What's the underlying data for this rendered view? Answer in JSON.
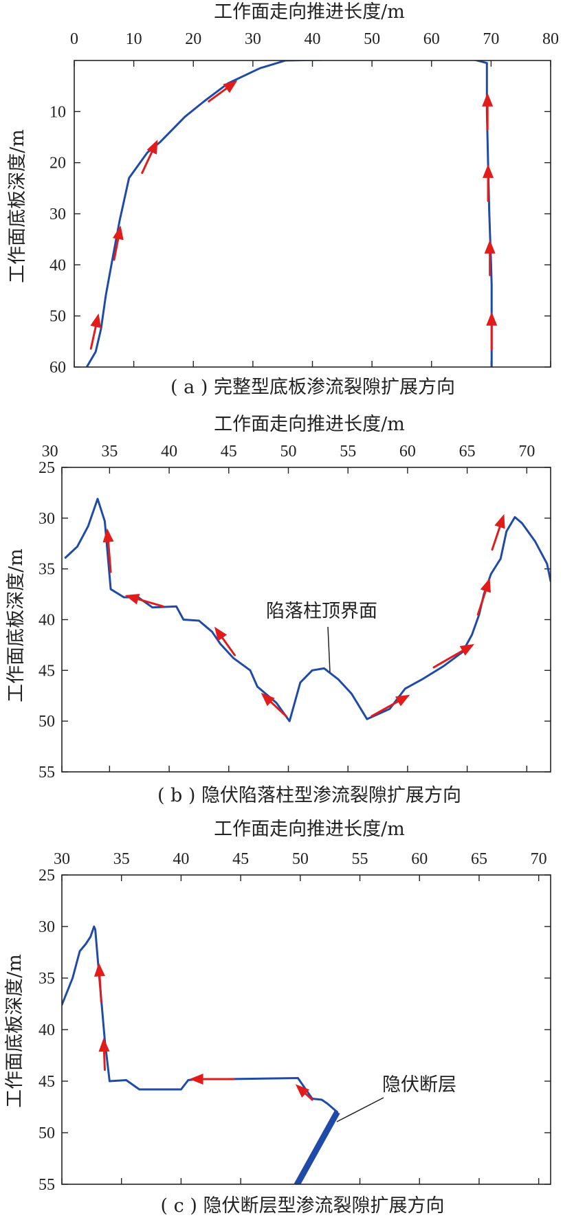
{
  "chart_data": [
    {
      "type": "line",
      "id": "a",
      "xlabel": "工作面走向推进长度/m",
      "ylabel": "工作面底板深度/m",
      "caption": "( a ) 完整型底板渗流裂隙扩展方向",
      "xlim": [
        0,
        80
      ],
      "ylim": [
        60,
        0
      ],
      "x_axis_position": "top",
      "y_inverted": true,
      "xticks": [
        0,
        10,
        20,
        30,
        40,
        50,
        60,
        70,
        80
      ],
      "yticks": [
        10,
        20,
        30,
        40,
        50,
        60
      ],
      "xtick_labels": [
        "0",
        "10",
        "20",
        "30",
        "40",
        "50",
        "60",
        "70",
        "80"
      ],
      "ytick_labels": [
        "10",
        "20",
        "30",
        "40",
        "50",
        "60"
      ],
      "line_color": "#1f4aa8",
      "arrow_color": "#e21b1b",
      "series": [
        {
          "x": [
            2.1,
            3.6,
            4.5,
            5.3,
            6.4,
            7.6,
            9.2,
            12.3,
            14.4,
            18.6,
            21.8,
            25.8,
            31.2,
            35.5,
            45,
            57,
            67,
            69.3,
            69.3,
            69.5,
            69.7,
            70.0,
            70.1,
            70.1,
            70.1
          ],
          "y": [
            60,
            57,
            52.5,
            46,
            39,
            31.5,
            23,
            18,
            16,
            11,
            8,
            4.5,
            1.5,
            0,
            -0.2,
            -0.2,
            -0.2,
            0.5,
            10,
            20,
            30,
            40,
            44,
            50,
            60
          ]
        }
      ],
      "arrows": [
        {
          "x1": 2.8,
          "y1": 56.4,
          "x2": 4.1,
          "y2": 49.5
        },
        {
          "x1": 6.7,
          "y1": 39,
          "x2": 7.8,
          "y2": 32.3
        },
        {
          "x1": 11.4,
          "y1": 22,
          "x2": 14.0,
          "y2": 15.5
        },
        {
          "x1": 22.6,
          "y1": 8,
          "x2": 27.4,
          "y2": 3.9
        },
        {
          "x1": 69.4,
          "y1": 13.5,
          "x2": 69.4,
          "y2": 6.3
        },
        {
          "x1": 69.5,
          "y1": 27.5,
          "x2": 69.5,
          "y2": 20.3
        },
        {
          "x1": 69.8,
          "y1": 42,
          "x2": 69.8,
          "y2": 35.1
        },
        {
          "x1": 70.1,
          "y1": 56.5,
          "x2": 70.1,
          "y2": 49.2
        }
      ]
    },
    {
      "type": "line",
      "id": "b",
      "xlabel": "工作面走向推进长度/m",
      "ylabel": "工作面底板深度/m",
      "caption": "( b ) 隐伏陷落柱型渗流裂隙扩展方向",
      "annotation": "陷落柱顶界面",
      "xlim": [
        31,
        72
      ],
      "ylim": [
        55,
        25
      ],
      "x_axis_position": "top",
      "y_inverted": true,
      "xticks": [
        30,
        35,
        40,
        45,
        50,
        55,
        60,
        65,
        70
      ],
      "yticks": [
        25,
        30,
        35,
        40,
        45,
        50,
        55
      ],
      "xtick_labels": [
        "30",
        "35",
        "40",
        "45",
        "50",
        "55",
        "60",
        "65",
        "70"
      ],
      "ytick_labels": [
        "25",
        "30",
        "35",
        "40",
        "45",
        "50",
        "55"
      ],
      "line_color": "#1f4aa8",
      "arrow_color": "#e21b1b",
      "series": [
        {
          "x": [
            31.3,
            32.3,
            33.2,
            34.0,
            34.6,
            35.1,
            36.2,
            37.4,
            38.6,
            40.6,
            41.2,
            42.5,
            43.6,
            44.3,
            45.4,
            46.8,
            47.4,
            49.0,
            50.1,
            51.0,
            52.0,
            53.0,
            54.2,
            55.3,
            56.6,
            58.5,
            59.8,
            61.2,
            63.0,
            64.6,
            65.4,
            66.0,
            66.4,
            67.0,
            67.8,
            68.3,
            69.0,
            69.6,
            70.7,
            71.7,
            72.0
          ],
          "y": [
            33.9,
            32.8,
            30.8,
            28.1,
            30.3,
            37.0,
            37.8,
            37.8,
            38.8,
            38.7,
            40.0,
            40.1,
            41.2,
            42.4,
            43.8,
            45.0,
            46.6,
            48.2,
            50.0,
            46.2,
            45.0,
            44.8,
            45.9,
            47.3,
            49.8,
            48.8,
            46.8,
            45.9,
            44.6,
            43.2,
            41.5,
            39.5,
            37.5,
            35.5,
            34.0,
            31.3,
            29.9,
            30.5,
            32.3,
            34.5,
            36.2
          ]
        }
      ],
      "arrows": [
        {
          "x1": 35.1,
          "y1": 35.3,
          "x2": 34.8,
          "y2": 31.0
        },
        {
          "x1": 39.5,
          "y1": 38.7,
          "x2": 36.3,
          "y2": 37.6
        },
        {
          "x1": 45.5,
          "y1": 43.5,
          "x2": 43.8,
          "y2": 40.7
        },
        {
          "x1": 49.8,
          "y1": 49.5,
          "x2": 47.7,
          "y2": 47.2
        },
        {
          "x1": 57.0,
          "y1": 49.5,
          "x2": 60.2,
          "y2": 47.4
        },
        {
          "x1": 62.2,
          "y1": 44.7,
          "x2": 65.6,
          "y2": 42.4
        },
        {
          "x1": 65.9,
          "y1": 39.5,
          "x2": 66.9,
          "y2": 35.9
        },
        {
          "x1": 67.1,
          "y1": 33.1,
          "x2": 68.1,
          "y2": 29.6
        }
      ]
    },
    {
      "type": "line",
      "id": "c",
      "xlabel": "工作面走向推进长度/m",
      "ylabel": "工作面底板深度/m",
      "caption": "( c ) 隐伏断层型渗流裂隙扩展方向",
      "annotation": "隐伏断层",
      "xlim": [
        30,
        71
      ],
      "ylim": [
        55,
        25
      ],
      "x_axis_position": "top",
      "y_inverted": true,
      "xticks": [
        30,
        35,
        40,
        45,
        50,
        55,
        60,
        65,
        70
      ],
      "yticks": [
        25,
        30,
        35,
        40,
        45,
        50,
        55
      ],
      "xtick_labels": [
        "30",
        "35",
        "40",
        "45",
        "50",
        "55",
        "60",
        "65",
        "70"
      ],
      "ytick_labels": [
        "25",
        "30",
        "35",
        "40",
        "45",
        "50",
        "55"
      ],
      "line_color": "#1f4aa8",
      "arrow_color": "#e21b1b",
      "series": [
        {
          "x": [
            30.0,
            30.9,
            31.5,
            32.0,
            32.4,
            32.7,
            32.8,
            33.0,
            33.3,
            33.6,
            34.0,
            35.4,
            36.5,
            37.5,
            38.4,
            40.0,
            40.6,
            41.4,
            44.0,
            49.8,
            51.0,
            51.8,
            52.3,
            53.1
          ],
          "y": [
            37.6,
            35.0,
            32.4,
            31.7,
            31.0,
            30.0,
            30.3,
            33.0,
            37.0,
            41.0,
            45.0,
            44.9,
            45.8,
            45.8,
            45.8,
            45.8,
            44.9,
            44.8,
            44.8,
            44.7,
            46.7,
            46.8,
            47.2,
            48.0
          ]
        }
      ],
      "fault": {
        "x1": 53.1,
        "y1": 48.0,
        "x2": 49.5,
        "y2": 55.5
      },
      "arrows": [
        {
          "x1": 33.3,
          "y1": 37.3,
          "x2": 33.1,
          "y2": 33.5
        },
        {
          "x1": 33.6,
          "y1": 43.9,
          "x2": 33.5,
          "y2": 40.8
        },
        {
          "x1": 44.4,
          "y1": 44.8,
          "x2": 40.7,
          "y2": 44.8
        },
        {
          "x1": 51.0,
          "y1": 46.8,
          "x2": 49.6,
          "y2": 45.3
        }
      ]
    }
  ]
}
